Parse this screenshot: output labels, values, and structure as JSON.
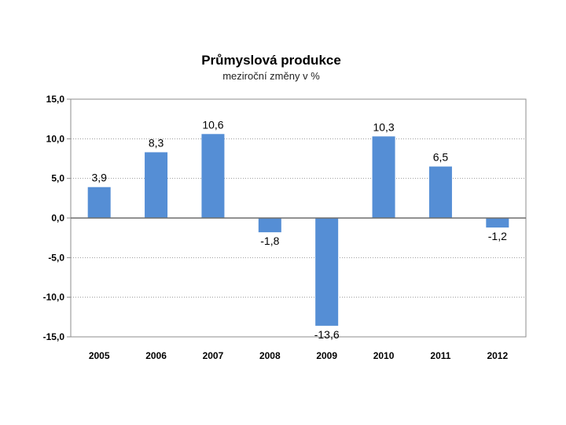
{
  "chart_data": {
    "type": "bar",
    "title": "Průmyslová produkce",
    "subtitle": "meziroční změny v %",
    "categories": [
      "2005",
      "2006",
      "2007",
      "2008",
      "2009",
      "2010",
      "2011",
      "2012"
    ],
    "values": [
      3.9,
      8.3,
      10.6,
      -1.8,
      -13.6,
      10.3,
      6.5,
      -1.2
    ],
    "data_labels": [
      "3,9",
      "8,3",
      "10,6",
      "-1,8",
      "-13,6",
      "10,3",
      "6,5",
      "-1,2"
    ],
    "ylim": [
      -15,
      15
    ],
    "yticks": [
      15,
      10,
      5,
      0,
      -5,
      -10,
      -15
    ],
    "ytick_labels": [
      "15,0",
      "10,0",
      "5,0",
      "0,0",
      "-5,0",
      "-10,0",
      "-15,0"
    ],
    "xlabel": "",
    "ylabel": "",
    "grid": "horizontal dotted",
    "legend": "none",
    "bar_color": "#558ed5"
  }
}
